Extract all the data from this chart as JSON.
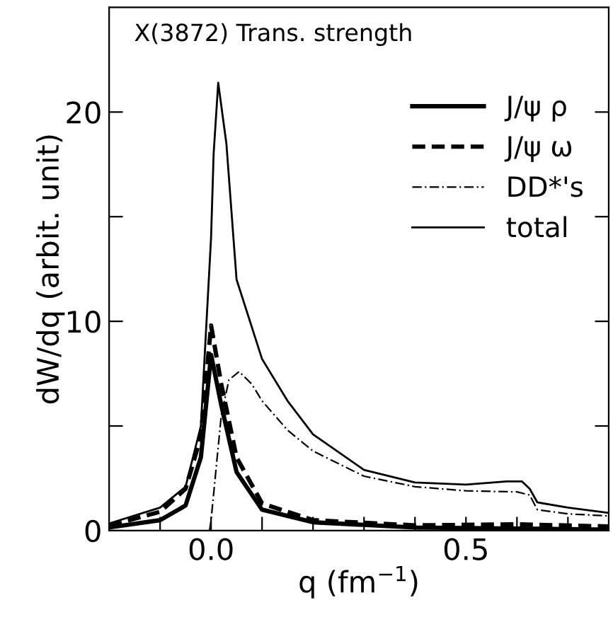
{
  "chart_data": {
    "type": "line",
    "xlabel": "q (fm$^{−1}$)",
    "ylabel": "dW/dq (arbit. unit)",
    "annotations": [
      "X(3872) Trans. strength"
    ],
    "xlim": [
      -0.2,
      0.78
    ],
    "ylim": [
      0,
      25
    ],
    "xticks": [
      {
        "value": -0.1,
        "label": null
      },
      {
        "value": 0.0,
        "label": "0.0"
      },
      {
        "value": 0.1,
        "label": null
      },
      {
        "value": 0.2,
        "label": null
      },
      {
        "value": 0.3,
        "label": null
      },
      {
        "value": 0.4,
        "label": null
      },
      {
        "value": 0.5,
        "label": "0.5"
      },
      {
        "value": 0.6,
        "label": null
      },
      {
        "value": 0.7,
        "label": null
      }
    ],
    "yticks": [
      0,
      {
        "value": 5,
        "label": null
      },
      10,
      {
        "value": 15,
        "label": null
      },
      20
    ],
    "legend": "top right",
    "grid": false,
    "series": [
      {
        "name": "J/ψ ρ",
        "color": "#000000",
        "line_style": "solid",
        "x": [
          -0.2,
          -0.1,
          -0.05,
          -0.02,
          0.0,
          0.02,
          0.05,
          0.1,
          0.2,
          0.4,
          0.6,
          0.78
        ],
        "values": [
          0.15,
          0.5,
          1.2,
          3.5,
          8.4,
          6.0,
          2.8,
          1.0,
          0.4,
          0.15,
          0.1,
          0.05
        ]
      },
      {
        "name": "J/ψ ω",
        "color": "#000000",
        "line_style": "dashed",
        "x": [
          -0.2,
          -0.1,
          -0.05,
          -0.02,
          0.0,
          0.02,
          0.05,
          0.1,
          0.2,
          0.4,
          0.6,
          0.78
        ],
        "values": [
          0.25,
          0.9,
          2.0,
          4.5,
          9.8,
          7.0,
          3.5,
          1.3,
          0.5,
          0.25,
          0.3,
          0.2
        ]
      },
      {
        "name": "DD*'s",
        "color": "#000000",
        "line_style": "dashdot",
        "x": [
          -0.003,
          0.0,
          0.01,
          0.02,
          0.035,
          0.055,
          0.08,
          0.1,
          0.15,
          0.2,
          0.3,
          0.4,
          0.5,
          0.6,
          0.625,
          0.64,
          0.7,
          0.78
        ],
        "values": [
          0,
          0.5,
          3.0,
          5.5,
          7.2,
          7.6,
          7.0,
          6.2,
          4.8,
          3.8,
          2.6,
          2.1,
          1.9,
          1.85,
          1.7,
          1.0,
          0.8,
          0.7
        ]
      },
      {
        "name": "total",
        "color": "#000000",
        "line_style": "solid",
        "x": [
          -0.2,
          -0.1,
          -0.05,
          -0.02,
          0.0,
          0.005,
          0.014,
          0.03,
          0.05,
          0.1,
          0.15,
          0.2,
          0.3,
          0.4,
          0.5,
          0.58,
          0.61,
          0.625,
          0.64,
          0.7,
          0.78
        ],
        "values": [
          0.34,
          1.1,
          2.1,
          5.0,
          14.0,
          18.0,
          21.4,
          18.5,
          12.0,
          8.2,
          6.2,
          4.6,
          2.9,
          2.3,
          2.2,
          2.35,
          2.35,
          2.0,
          1.35,
          1.1,
          0.85
        ]
      }
    ]
  }
}
